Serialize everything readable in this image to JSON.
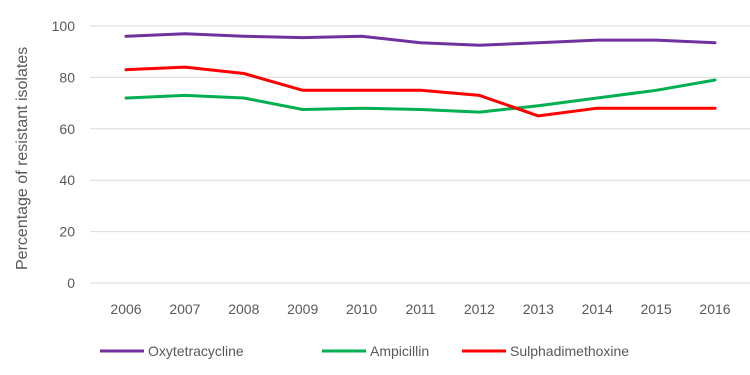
{
  "chart_data": {
    "type": "line",
    "title": "",
    "xlabel": "",
    "ylabel": "Percentage of resistant isolates",
    "x": [
      2006,
      2007,
      2008,
      2009,
      2010,
      2011,
      2012,
      2013,
      2014,
      2015,
      2016
    ],
    "ylim": [
      0,
      100
    ],
    "yticks": [
      0,
      20,
      40,
      60,
      80,
      100
    ],
    "grid": true,
    "legend": "bottom",
    "series": [
      {
        "name": "Oxytetracycline",
        "color": "#7030a0",
        "values": [
          96,
          97,
          96,
          95.5,
          96,
          93.5,
          92.5,
          93.5,
          94.5,
          94.5,
          93.5
        ]
      },
      {
        "name": "Ampicillin",
        "color": "#00b050",
        "values": [
          72,
          73,
          72,
          67.5,
          68,
          67.5,
          66.5,
          69,
          72,
          75,
          79
        ]
      },
      {
        "name": "Sulphadimethoxine",
        "color": "#ff0000",
        "values": [
          83,
          84,
          81.5,
          75,
          75,
          75,
          73,
          65,
          68,
          68,
          68
        ]
      }
    ]
  }
}
